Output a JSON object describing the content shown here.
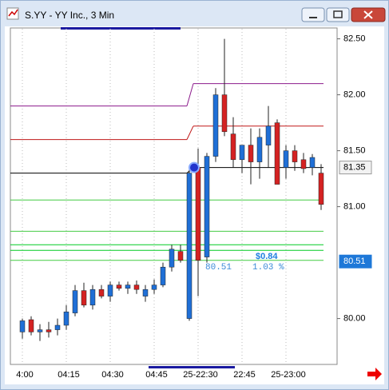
{
  "window": {
    "title": "S.YY - YY Inc., 3 Min"
  },
  "chart_data": {
    "type": "candlestick",
    "categories": [
      "4:00",
      null,
      null,
      null,
      null,
      "04:15",
      null,
      null,
      null,
      null,
      "04:30",
      null,
      null,
      null,
      null,
      "04:45",
      null,
      null,
      null,
      null,
      "25-22:30",
      null,
      null,
      null,
      null,
      "22:45",
      null,
      null,
      null,
      null,
      "25-23:00",
      null,
      null,
      null,
      null
    ],
    "open": [
      79.88,
      79.99,
      79.88,
      79.9,
      79.9,
      79.94,
      80.05,
      80.25,
      80.12,
      80.26,
      80.2,
      80.3,
      80.27,
      80.3,
      80.2,
      80.26,
      80.3,
      80.46,
      80.6,
      80.0,
      81.35,
      80.55,
      81.45,
      82.0,
      81.65,
      81.42,
      81.55,
      81.4,
      81.55,
      81.75,
      81.35,
      81.5,
      81.42,
      81.35,
      81.3
    ],
    "high": [
      80.0,
      80.02,
      79.95,
      79.97,
      80.0,
      80.12,
      80.3,
      80.32,
      80.3,
      80.3,
      80.33,
      80.33,
      80.33,
      80.34,
      80.3,
      80.35,
      80.5,
      80.66,
      80.66,
      81.35,
      81.52,
      81.48,
      82.06,
      82.5,
      81.8,
      81.55,
      81.7,
      81.7,
      81.9,
      81.78,
      81.55,
      81.55,
      81.48,
      81.47,
      81.38
    ],
    "low": [
      79.82,
      79.85,
      79.8,
      79.83,
      79.85,
      79.9,
      80.02,
      80.1,
      80.08,
      80.18,
      80.15,
      80.25,
      80.22,
      80.22,
      80.15,
      80.22,
      80.28,
      80.42,
      80.5,
      79.98,
      80.2,
      80.5,
      81.4,
      81.63,
      81.35,
      81.3,
      81.2,
      81.25,
      81.35,
      81.2,
      81.25,
      81.32,
      81.3,
      81.28,
      80.97
    ],
    "close": [
      79.98,
      79.88,
      79.9,
      79.88,
      79.94,
      80.06,
      80.25,
      80.12,
      80.26,
      80.2,
      80.3,
      80.27,
      80.3,
      80.26,
      80.26,
      80.3,
      80.46,
      80.62,
      80.52,
      81.3,
      80.52,
      81.45,
      82.0,
      81.67,
      81.42,
      81.55,
      81.4,
      81.62,
      81.72,
      81.2,
      81.5,
      81.4,
      81.34,
      81.44,
      81.02
    ],
    "up_color": "#1f6fd6",
    "down_color": "#d42222",
    "levels": [
      {
        "color": "#8b1a8b",
        "values": [
          81.9,
          82.1
        ]
      },
      {
        "color": "#c01818",
        "values": [
          81.6,
          81.72
        ]
      },
      {
        "color": "#000000",
        "values": [
          81.3,
          81.35
        ]
      },
      {
        "color": "#44cc44",
        "values": [
          81.06
        ]
      },
      {
        "color": "#44cc44",
        "values": [
          80.78
        ]
      },
      {
        "color": "#00cc22",
        "values": [
          80.66
        ]
      },
      {
        "color": "#00cc22",
        "values": [
          80.61
        ]
      },
      {
        "color": "#44cc44",
        "values": [
          80.52
        ]
      }
    ],
    "ylim": [
      79.59,
      82.59
    ],
    "yticks": [
      {
        "value": 80,
        "label": "80.00"
      },
      {
        "value": 81,
        "label": "81.00"
      },
      {
        "value": 81.5,
        "label": "81.50"
      },
      {
        "value": 82,
        "label": "82.00"
      },
      {
        "value": 82.5,
        "label": "82.50"
      }
    ],
    "price_tags": [
      {
        "value": 81.35,
        "label": "81.35"
      },
      {
        "value": 80.51,
        "label": "80.51"
      }
    ],
    "annotations": {
      "start_price": "80.51",
      "change": "$0.84",
      "change_pct": "1.03 %"
    },
    "grid": true
  }
}
